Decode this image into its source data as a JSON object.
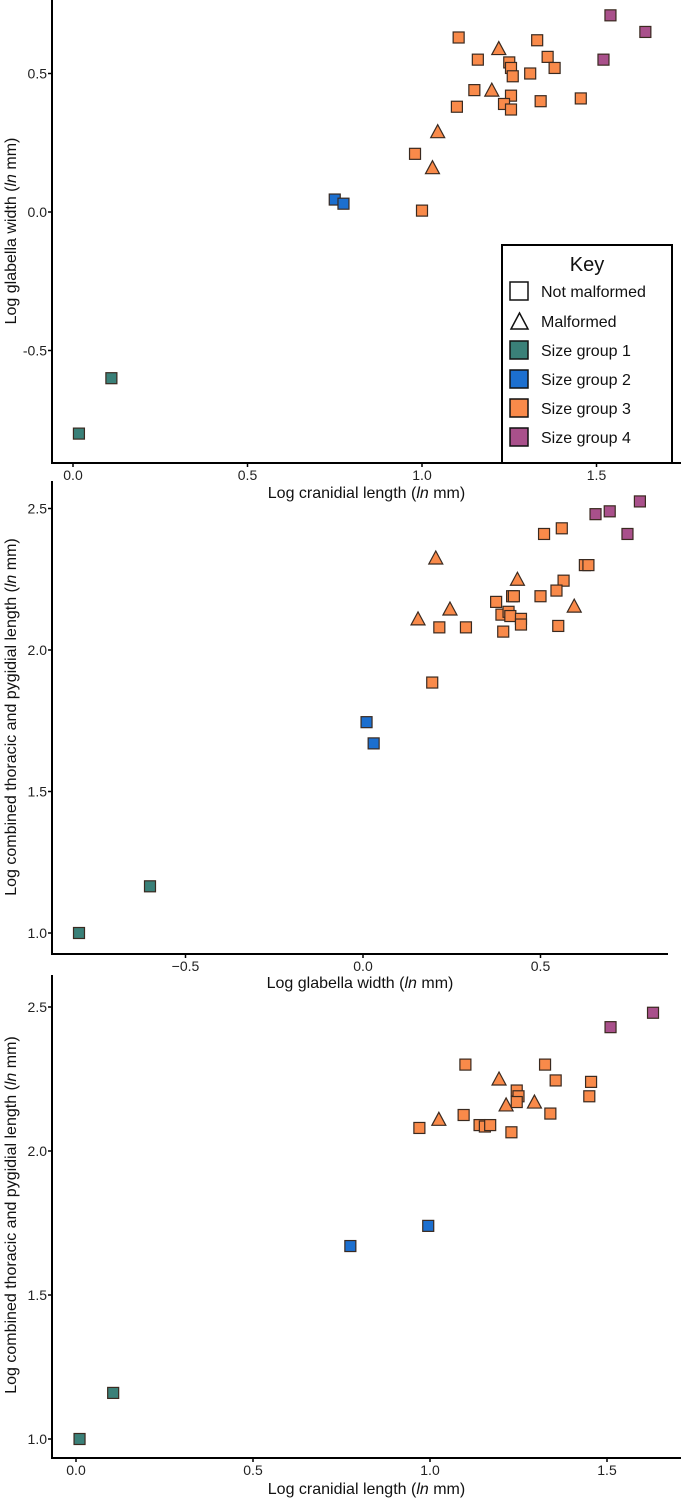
{
  "colors": {
    "1": "#3a8078",
    "2": "#1c6fcf",
    "3": "#f98a4a",
    "4": "#a9508b",
    "edge": "#3a2a20"
  },
  "legend": {
    "title": "Key",
    "not_malformed": "Not malformed",
    "malformed": "Malformed",
    "group1": "Size group 1",
    "group2": "Size group 2",
    "group3": "Size group 3",
    "group4": "Size group 4"
  },
  "chart_data": [
    {
      "type": "scatter",
      "xlabel": {
        "pre": "Log cranidial length (",
        "it": "ln",
        "post": " mm)"
      },
      "ylabel": {
        "pre": "Log glabella width (",
        "it": "ln",
        "post": " mm)"
      },
      "xticks": [
        "0.0",
        "0.5",
        "1.0",
        "1.5"
      ],
      "xtick_values": [
        0,
        0.5,
        1,
        1.5
      ],
      "yticks": [
        "-0.5",
        "0.0",
        "0.5"
      ],
      "ytick_values": [
        -0.5,
        0,
        0.5
      ],
      "xlim": [
        -0.06,
        1.74
      ],
      "ylim": [
        -0.9,
        0.76
      ],
      "point_fields": [
        "x",
        "y",
        "size_group",
        "malformed"
      ],
      "points": [
        [
          1.105,
          0.63,
          3,
          0
        ],
        [
          1.22,
          0.59,
          3,
          1
        ],
        [
          1.33,
          0.62,
          3,
          0
        ],
        [
          1.16,
          0.55,
          3,
          0
        ],
        [
          1.25,
          0.54,
          3,
          0
        ],
        [
          1.255,
          0.52,
          3,
          0
        ],
        [
          1.26,
          0.49,
          3,
          0
        ],
        [
          1.36,
          0.56,
          3,
          0
        ],
        [
          1.38,
          0.52,
          3,
          0
        ],
        [
          1.31,
          0.5,
          3,
          0
        ],
        [
          1.15,
          0.44,
          3,
          0
        ],
        [
          1.2,
          0.44,
          3,
          1
        ],
        [
          1.255,
          0.42,
          3,
          0
        ],
        [
          1.235,
          0.39,
          3,
          0
        ],
        [
          1.255,
          0.37,
          3,
          0
        ],
        [
          1.34,
          0.4,
          3,
          0
        ],
        [
          1.455,
          0.41,
          3,
          0
        ],
        [
          1.1,
          0.38,
          3,
          0
        ],
        [
          1.045,
          0.29,
          3,
          1
        ],
        [
          0.98,
          0.21,
          3,
          0
        ],
        [
          1.03,
          0.16,
          3,
          1
        ],
        [
          1.0,
          0.005,
          3,
          0
        ],
        [
          1.54,
          0.71,
          4,
          0
        ],
        [
          1.64,
          0.65,
          4,
          0
        ],
        [
          1.52,
          0.55,
          4,
          0
        ],
        [
          0.75,
          0.045,
          2,
          0
        ],
        [
          0.775,
          0.03,
          2,
          0
        ],
        [
          0.11,
          -0.6,
          1,
          0
        ],
        [
          0.017,
          -0.8,
          1,
          0
        ]
      ],
      "legend_position": "bottom-right"
    },
    {
      "type": "scatter",
      "xlabel": {
        "pre": "Log glabella width (",
        "it": "ln",
        "post": " mm)"
      },
      "ylabel": {
        "pre": "Log combined thoracic and pygidial length (",
        "it": "ln",
        "post": " mm)"
      },
      "xticks": [
        "−0.5",
        "0.0",
        "0.5"
      ],
      "xtick_values": [
        -0.5,
        0,
        0.5
      ],
      "yticks": [
        "1.0",
        "1.5",
        "2.0",
        "2.5"
      ],
      "ytick_values": [
        1,
        1.5,
        2,
        2.5
      ],
      "xlim": [
        -0.88,
        0.86
      ],
      "ylim": [
        0.95,
        2.62
      ],
      "point_fields": [
        "x",
        "y",
        "size_group",
        "malformed"
      ],
      "points": [
        [
          0.78,
          2.525,
          4,
          0
        ],
        [
          0.655,
          2.48,
          4,
          0
        ],
        [
          0.695,
          2.49,
          4,
          0
        ],
        [
          0.745,
          2.41,
          4,
          0
        ],
        [
          0.51,
          2.41,
          3,
          0
        ],
        [
          0.56,
          2.43,
          3,
          0
        ],
        [
          0.625,
          2.3,
          3,
          0
        ],
        [
          0.635,
          2.3,
          3,
          0
        ],
        [
          0.565,
          2.245,
          3,
          0
        ],
        [
          0.545,
          2.21,
          3,
          0
        ],
        [
          0.5,
          2.19,
          3,
          0
        ],
        [
          0.205,
          2.325,
          3,
          1
        ],
        [
          0.435,
          2.25,
          3,
          1
        ],
        [
          0.245,
          2.145,
          3,
          1
        ],
        [
          0.155,
          2.11,
          3,
          1
        ],
        [
          0.595,
          2.155,
          3,
          1
        ],
        [
          0.215,
          2.08,
          3,
          0
        ],
        [
          0.29,
          2.08,
          3,
          0
        ],
        [
          0.375,
          2.17,
          3,
          0
        ],
        [
          0.42,
          2.19,
          3,
          0
        ],
        [
          0.425,
          2.19,
          3,
          0
        ],
        [
          0.39,
          2.125,
          3,
          0
        ],
        [
          0.41,
          2.135,
          3,
          0
        ],
        [
          0.415,
          2.12,
          3,
          0
        ],
        [
          0.445,
          2.11,
          3,
          0
        ],
        [
          0.445,
          2.09,
          3,
          0
        ],
        [
          0.395,
          2.065,
          3,
          0
        ],
        [
          0.55,
          2.085,
          3,
          0
        ],
        [
          0.195,
          1.885,
          3,
          0
        ],
        [
          0.01,
          1.745,
          2,
          0
        ],
        [
          0.03,
          1.67,
          2,
          0
        ],
        [
          -0.6,
          1.165,
          1,
          0
        ],
        [
          -0.8,
          1.0,
          1,
          0
        ]
      ]
    },
    {
      "type": "scatter",
      "xlabel": {
        "pre": "Log cranidial length (",
        "it": "ln",
        "post": " mm)"
      },
      "ylabel": {
        "pre": "Log combined thoracic and pygidial length (",
        "it": "ln",
        "post": " mm)"
      },
      "xticks": [
        "0.0",
        "0.5",
        "1.0",
        "1.5"
      ],
      "xtick_values": [
        0,
        0.5,
        1,
        1.5
      ],
      "yticks": [
        "1.0",
        "1.5",
        "2.0",
        "2.5"
      ],
      "ytick_values": [
        1,
        1.5,
        2,
        2.5
      ],
      "xlim": [
        -0.07,
        1.71
      ],
      "ylim": [
        0.93,
        2.62
      ],
      "point_fields": [
        "x",
        "y",
        "size_group",
        "malformed"
      ],
      "points": [
        [
          1.63,
          2.48,
          4,
          0
        ],
        [
          1.51,
          2.43,
          4,
          0
        ],
        [
          1.1,
          2.3,
          3,
          0
        ],
        [
          1.325,
          2.3,
          3,
          0
        ],
        [
          1.195,
          2.25,
          3,
          1
        ],
        [
          1.355,
          2.245,
          3,
          0
        ],
        [
          1.455,
          2.24,
          3,
          0
        ],
        [
          1.245,
          2.21,
          3,
          0
        ],
        [
          1.25,
          2.19,
          3,
          0
        ],
        [
          1.245,
          2.17,
          3,
          0
        ],
        [
          1.45,
          2.19,
          3,
          0
        ],
        [
          1.215,
          2.16,
          3,
          1
        ],
        [
          1.295,
          2.17,
          3,
          1
        ],
        [
          1.34,
          2.13,
          3,
          0
        ],
        [
          1.095,
          2.125,
          3,
          0
        ],
        [
          1.025,
          2.11,
          3,
          1
        ],
        [
          0.97,
          2.08,
          3,
          0
        ],
        [
          1.14,
          2.09,
          3,
          0
        ],
        [
          1.155,
          2.085,
          3,
          0
        ],
        [
          1.17,
          2.09,
          3,
          0
        ],
        [
          1.23,
          2.065,
          3,
          0
        ],
        [
          0.775,
          1.67,
          2,
          0
        ],
        [
          0.995,
          1.74,
          2,
          0
        ],
        [
          0.105,
          1.16,
          1,
          0
        ],
        [
          0.01,
          1.0,
          1,
          0
        ]
      ]
    }
  ]
}
